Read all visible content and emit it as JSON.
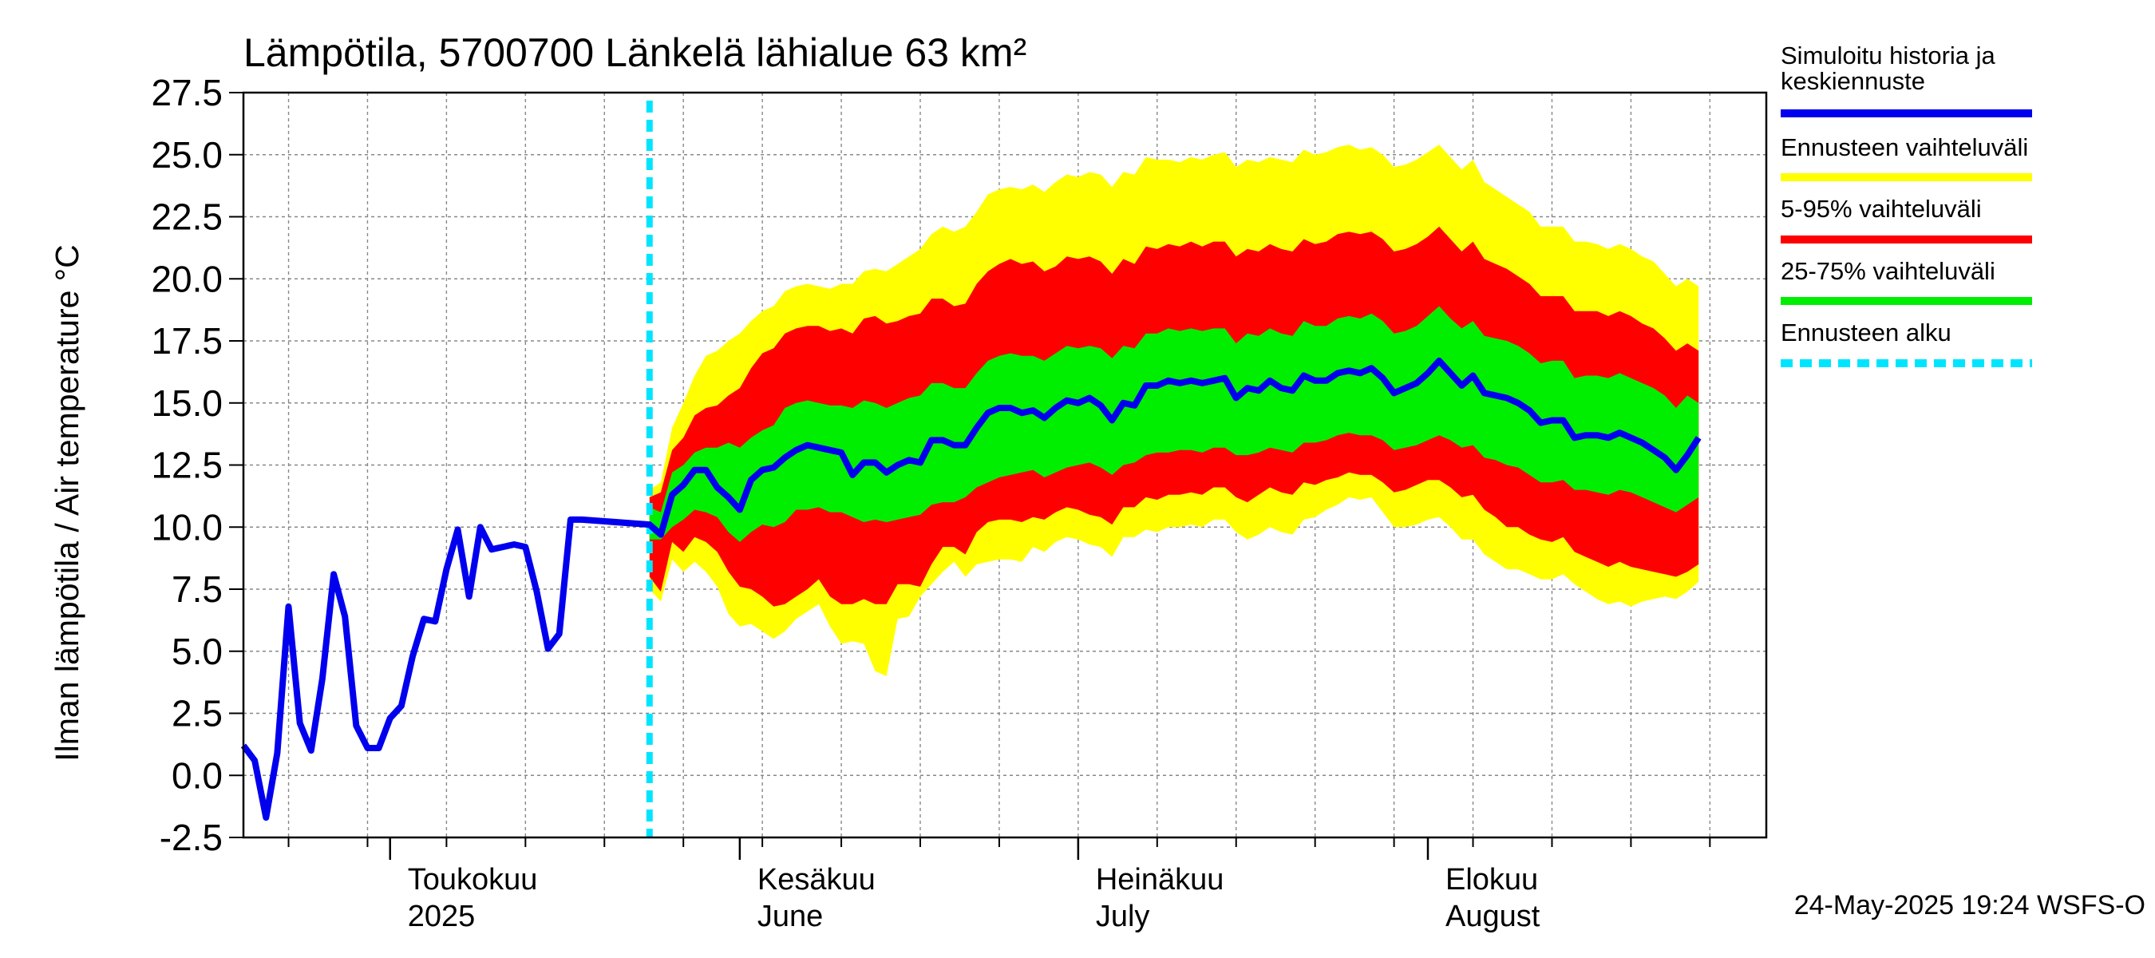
{
  "chart_data": {
    "type": "area",
    "title": "Lämpötila, 5700700 Länkelä lähialue 63 km²",
    "ylabel": "Ilman lämpötila / Air temperature   °C",
    "ylim": [
      -2.5,
      27.5
    ],
    "yticks": [
      "27.5",
      "25.0",
      "22.5",
      "20.0",
      "17.5",
      "15.0",
      "12.5",
      "10.0",
      "7.5",
      "5.0",
      "2.5",
      "0.0",
      "-2.5"
    ],
    "xlim": [
      "2025-04-18",
      "2025-08-31"
    ],
    "month_labels": [
      {
        "date": "2025-05-01",
        "line1": "Toukokuu",
        "line2": "2025"
      },
      {
        "date": "2025-06-01",
        "line1": "Kesäkuu",
        "line2": "June"
      },
      {
        "date": "2025-07-01",
        "line1": "Heinäkuu",
        "line2": "July"
      },
      {
        "date": "2025-08-01",
        "line1": "Elokuu",
        "line2": "August"
      }
    ],
    "forecast_start": "2025-05-24",
    "footer": "24-May-2025 19:24 WSFS-O",
    "legend": [
      {
        "line1": "Simuloitu historia ja",
        "line2": "keskiennuste",
        "color": "#0000ee",
        "style": "solid"
      },
      {
        "line1": "Ennusteen vaihteluväli",
        "line2": "",
        "color": "#ffff00",
        "style": "solid"
      },
      {
        "line1": "5-95% vaihteluväli",
        "line2": "",
        "color": "#ff0000",
        "style": "solid"
      },
      {
        "line1": "25-75% vaihteluväli",
        "line2": "",
        "color": "#00ee00",
        "style": "solid"
      },
      {
        "line1": "Ennusteen alku",
        "line2": "",
        "color": "#00e5ff",
        "style": "dashed"
      }
    ],
    "history": {
      "start_date": "2025-04-18",
      "values": [
        1.2,
        0.6,
        -1.7,
        0.9,
        6.8,
        2.1,
        1.0,
        3.9,
        8.1,
        6.4,
        2.0,
        1.1,
        1.1,
        2.3,
        2.8,
        4.8,
        6.3,
        6.2,
        8.3,
        9.9,
        7.2,
        10.0,
        9.1,
        9.2,
        9.3,
        9.2,
        7.4,
        5.1,
        5.7,
        10.3,
        10.3
      ]
    },
    "forecast": {
      "start_date": "2025-05-24",
      "median": [
        10.1,
        9.7,
        11.3,
        11.7,
        12.3,
        12.3,
        11.6,
        11.2,
        10.7,
        11.9,
        12.3,
        12.4,
        12.8,
        13.1,
        13.3,
        13.2,
        13.1,
        13.0,
        12.1,
        12.6,
        12.6,
        12.2,
        12.5,
        12.7,
        12.6,
        13.5,
        13.5,
        13.3,
        13.3,
        14.0,
        14.6,
        14.8,
        14.8,
        14.6,
        14.7,
        14.4,
        14.8,
        15.1,
        15.0,
        15.2,
        14.9,
        14.3,
        15.0,
        14.9,
        15.7,
        15.7,
        15.9,
        15.8,
        15.9,
        15.8,
        15.9,
        16.0,
        15.2,
        15.6,
        15.5,
        15.9,
        15.6,
        15.5,
        16.1,
        15.9,
        15.9,
        16.2,
        16.3,
        16.2,
        16.4,
        16.0,
        15.4,
        15.6,
        15.8,
        16.2,
        16.7,
        16.2,
        15.7,
        16.1,
        15.4,
        15.3,
        15.2,
        15.0,
        14.7,
        14.2,
        14.3,
        14.3,
        13.6,
        13.7,
        13.7,
        13.6,
        13.8,
        13.6,
        13.4,
        13.1,
        12.8,
        12.3,
        12.9,
        13.6
      ],
      "p25": [
        9.5,
        9.5,
        10.0,
        10.3,
        10.7,
        10.6,
        10.4,
        9.8,
        9.4,
        9.8,
        10.1,
        10.0,
        10.2,
        10.7,
        10.7,
        10.8,
        10.6,
        10.6,
        10.4,
        10.2,
        10.3,
        10.2,
        10.3,
        10.4,
        10.5,
        10.9,
        11.0,
        11.0,
        11.2,
        11.6,
        11.8,
        12.0,
        12.1,
        12.2,
        12.3,
        12.0,
        12.2,
        12.4,
        12.5,
        12.6,
        12.4,
        12.1,
        12.5,
        12.6,
        12.9,
        13.0,
        13.0,
        13.1,
        13.1,
        13.0,
        13.2,
        13.2,
        12.9,
        12.9,
        13.0,
        13.2,
        13.1,
        13.0,
        13.4,
        13.4,
        13.5,
        13.7,
        13.8,
        13.7,
        13.7,
        13.5,
        13.1,
        13.2,
        13.3,
        13.5,
        13.7,
        13.5,
        13.2,
        13.3,
        12.8,
        12.7,
        12.5,
        12.4,
        12.1,
        11.8,
        11.8,
        11.9,
        11.5,
        11.5,
        11.4,
        11.3,
        11.5,
        11.4,
        11.2,
        11.0,
        10.8,
        10.6,
        10.9,
        11.2
      ],
      "p75": [
        10.8,
        10.6,
        12.2,
        12.5,
        13.0,
        13.2,
        13.2,
        13.4,
        13.2,
        13.6,
        13.9,
        14.1,
        14.8,
        15.0,
        15.1,
        15.0,
        14.9,
        14.9,
        14.8,
        15.1,
        15.0,
        14.8,
        15.0,
        15.2,
        15.3,
        15.8,
        15.8,
        15.6,
        15.6,
        16.2,
        16.7,
        16.9,
        17.0,
        16.9,
        16.9,
        16.7,
        17.0,
        17.3,
        17.2,
        17.3,
        17.2,
        16.8,
        17.3,
        17.2,
        17.8,
        17.8,
        18.0,
        17.9,
        18.0,
        17.9,
        18.0,
        18.0,
        17.4,
        17.8,
        17.7,
        18.0,
        17.8,
        17.7,
        18.3,
        18.1,
        18.1,
        18.4,
        18.5,
        18.4,
        18.6,
        18.3,
        17.8,
        17.9,
        18.1,
        18.5,
        18.9,
        18.4,
        18.0,
        18.3,
        17.7,
        17.6,
        17.5,
        17.3,
        17.0,
        16.6,
        16.7,
        16.7,
        16.0,
        16.1,
        16.1,
        16.0,
        16.2,
        16.0,
        15.8,
        15.6,
        15.3,
        14.8,
        15.3,
        15.0
      ],
      "p5": [
        8.0,
        7.4,
        9.4,
        9.0,
        9.6,
        9.4,
        9.0,
        8.2,
        7.6,
        7.5,
        7.2,
        6.8,
        6.9,
        7.2,
        7.5,
        7.9,
        7.2,
        6.9,
        6.9,
        7.1,
        6.9,
        6.9,
        7.7,
        7.7,
        7.6,
        8.5,
        9.2,
        9.2,
        8.9,
        9.8,
        10.2,
        10.3,
        10.3,
        10.2,
        10.4,
        10.3,
        10.6,
        10.8,
        10.7,
        10.5,
        10.4,
        10.1,
        10.8,
        10.8,
        11.2,
        11.1,
        11.3,
        11.3,
        11.4,
        11.3,
        11.6,
        11.6,
        11.2,
        11.0,
        11.3,
        11.6,
        11.4,
        11.3,
        11.8,
        11.7,
        11.9,
        12.0,
        12.2,
        12.1,
        12.1,
        11.8,
        11.4,
        11.5,
        11.7,
        11.9,
        11.9,
        11.6,
        11.2,
        11.3,
        10.7,
        10.4,
        10.0,
        10.0,
        9.7,
        9.5,
        9.4,
        9.6,
        9.0,
        8.8,
        8.6,
        8.4,
        8.6,
        8.4,
        8.3,
        8.2,
        8.1,
        8.0,
        8.2,
        8.5
      ],
      "p95": [
        11.2,
        11.4,
        13.1,
        13.6,
        14.5,
        14.8,
        14.9,
        15.3,
        15.6,
        16.4,
        17.0,
        17.2,
        17.8,
        18.0,
        18.1,
        18.1,
        17.9,
        18.0,
        17.8,
        18.4,
        18.5,
        18.2,
        18.3,
        18.5,
        18.6,
        19.2,
        19.2,
        18.9,
        19.0,
        19.8,
        20.3,
        20.6,
        20.8,
        20.6,
        20.7,
        20.3,
        20.5,
        20.9,
        20.8,
        20.9,
        20.7,
        20.2,
        20.8,
        20.6,
        21.3,
        21.2,
        21.4,
        21.3,
        21.5,
        21.3,
        21.5,
        21.5,
        20.9,
        21.2,
        21.1,
        21.4,
        21.2,
        21.1,
        21.6,
        21.4,
        21.5,
        21.8,
        21.9,
        21.8,
        21.9,
        21.6,
        21.1,
        21.2,
        21.4,
        21.7,
        22.1,
        21.6,
        21.1,
        21.5,
        20.8,
        20.6,
        20.4,
        20.1,
        19.8,
        19.3,
        19.3,
        19.3,
        18.7,
        18.7,
        18.7,
        18.5,
        18.7,
        18.5,
        18.2,
        18.0,
        17.6,
        17.1,
        17.4,
        17.1
      ],
      "min": [
        7.5,
        7.0,
        8.7,
        8.2,
        8.6,
        8.2,
        7.6,
        6.5,
        6.0,
        6.1,
        5.8,
        5.5,
        5.8,
        6.3,
        6.6,
        6.9,
        6.0,
        5.3,
        5.4,
        5.3,
        4.2,
        4.0,
        6.3,
        6.4,
        7.2,
        7.7,
        8.2,
        8.6,
        8.0,
        8.5,
        8.6,
        8.7,
        8.7,
        8.6,
        9.2,
        9.0,
        9.4,
        9.6,
        9.5,
        9.3,
        9.2,
        8.8,
        9.6,
        9.6,
        9.9,
        9.8,
        10.0,
        10.0,
        10.1,
        10.0,
        10.3,
        10.3,
        9.8,
        9.5,
        9.7,
        10.0,
        9.8,
        9.7,
        10.3,
        10.4,
        10.7,
        10.9,
        11.2,
        11.1,
        11.2,
        10.6,
        10.0,
        10.0,
        10.1,
        10.3,
        10.4,
        10.0,
        9.5,
        9.5,
        8.9,
        8.6,
        8.3,
        8.3,
        8.1,
        7.9,
        7.9,
        8.1,
        7.7,
        7.4,
        7.1,
        6.9,
        7.0,
        6.8,
        7.0,
        7.1,
        7.2,
        7.1,
        7.4,
        7.8
      ],
      "max": [
        11.5,
        11.8,
        14.0,
        15.0,
        16.1,
        16.9,
        17.1,
        17.5,
        17.8,
        18.3,
        18.7,
        18.9,
        19.5,
        19.7,
        19.8,
        19.7,
        19.6,
        19.8,
        19.8,
        20.3,
        20.4,
        20.3,
        20.6,
        20.9,
        21.2,
        21.8,
        22.1,
        21.9,
        22.1,
        22.7,
        23.4,
        23.6,
        23.7,
        23.6,
        23.8,
        23.5,
        23.9,
        24.2,
        24.1,
        24.3,
        24.2,
        23.7,
        24.3,
        24.2,
        24.9,
        24.8,
        24.8,
        24.7,
        24.9,
        24.8,
        25.0,
        25.1,
        24.5,
        24.8,
        24.7,
        24.9,
        24.8,
        24.7,
        25.2,
        25.0,
        25.1,
        25.3,
        25.4,
        25.2,
        25.3,
        25.0,
        24.5,
        24.6,
        24.8,
        25.1,
        25.4,
        24.9,
        24.4,
        24.8,
        23.9,
        23.6,
        23.3,
        23.0,
        22.7,
        22.1,
        22.1,
        22.1,
        21.5,
        21.5,
        21.4,
        21.2,
        21.4,
        21.2,
        20.9,
        20.7,
        20.2,
        19.7,
        20.0,
        19.7
      ]
    }
  }
}
